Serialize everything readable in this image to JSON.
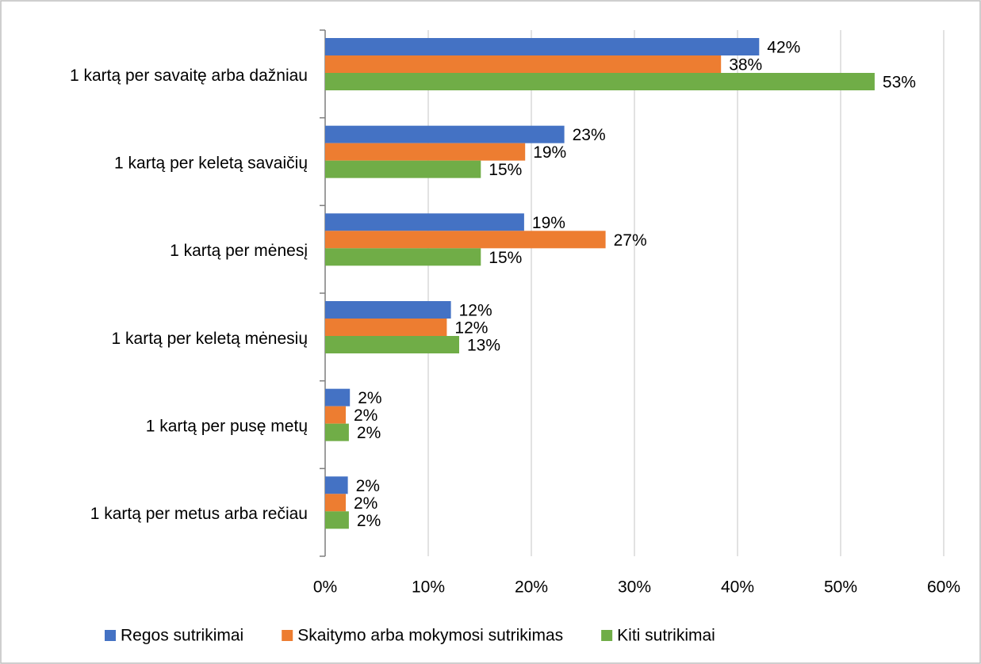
{
  "chart_data": {
    "type": "hbar",
    "categories": [
      "1 kartą per savaitę arba dažniau",
      "1 kartą per keletą savaičių",
      "1 kartą per mėnesį",
      "1 kartą per keletą mėnesių",
      "1 kartą per pusę metų",
      "1 kartą per metus arba rečiau"
    ],
    "series": [
      {
        "name": "Regos sutrikimai",
        "color": "#4472c4",
        "values": [
          42.1,
          23.2,
          19.3,
          12.2,
          2.4,
          2.2
        ],
        "value_labels": [
          "42%",
          "23%",
          "19%",
          "12%",
          "2%",
          "2%"
        ]
      },
      {
        "name": "Skaitymo arba mokymosi sutrikimas",
        "color": "#ed7d31",
        "values": [
          38.4,
          19.4,
          27.2,
          11.8,
          2.0,
          2.0
        ],
        "value_labels": [
          "38%",
          "19%",
          "27%",
          "12%",
          "2%",
          "2%"
        ]
      },
      {
        "name": "Kiti sutrikimai",
        "color": "#70ad47",
        "values": [
          53.3,
          15.1,
          15.1,
          13.0,
          2.3,
          2.3
        ],
        "value_labels": [
          "53%",
          "15%",
          "15%",
          "13%",
          "2%",
          "2%"
        ]
      }
    ],
    "xlim": [
      0,
      60
    ],
    "xticks": [
      {
        "value": 0,
        "label": "0%"
      },
      {
        "value": 10,
        "label": "10%"
      },
      {
        "value": 20,
        "label": "20%"
      },
      {
        "value": 30,
        "label": "30%"
      },
      {
        "value": 40,
        "label": "40%"
      },
      {
        "value": 50,
        "label": "50%"
      },
      {
        "value": 60,
        "label": "60%"
      }
    ],
    "grid": true,
    "legend": "bottom"
  }
}
